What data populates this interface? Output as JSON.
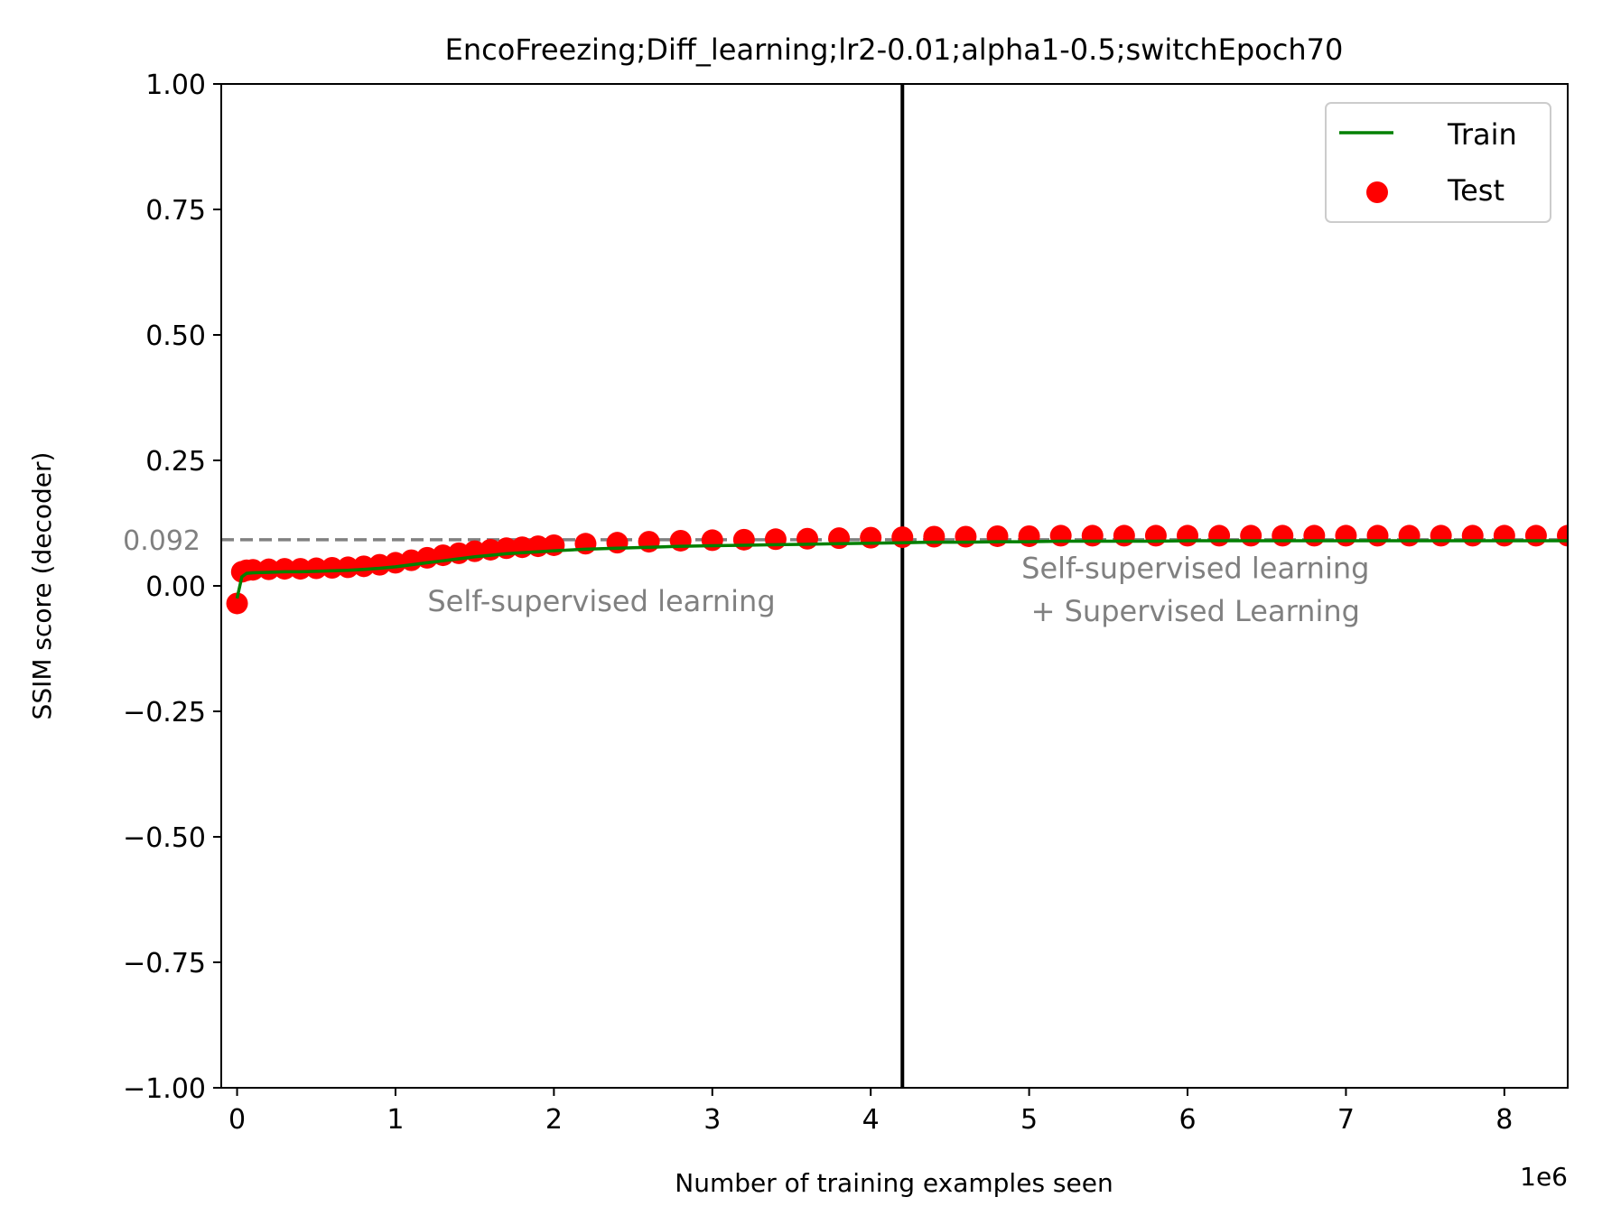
{
  "chart_data": {
    "type": "line",
    "title": "EncoFreezing;Diff_learning;lr2-0.01;alpha1-0.5;switchEpoch70",
    "xlabel": "Number of training examples seen",
    "ylabel": "SSIM score (decoder)",
    "x_offset_label": "1e6",
    "xlim": [
      -0.1,
      8.4
    ],
    "ylim": [
      -1.0,
      1.0
    ],
    "x_scale": 1000000,
    "xticks": [
      0,
      1,
      2,
      3,
      4,
      5,
      6,
      7,
      8
    ],
    "xtick_labels": [
      "0",
      "1",
      "2",
      "3",
      "4",
      "5",
      "6",
      "7",
      "8"
    ],
    "yticks": [
      1.0,
      0.75,
      0.5,
      0.25,
      0.0,
      -0.25,
      -0.5,
      -0.75,
      -1.0
    ],
    "ytick_labels": [
      "1.00",
      "0.75",
      "0.50",
      "0.25",
      "0.00",
      "−0.25",
      "−0.50",
      "−0.75",
      "−1.00"
    ],
    "grid": false,
    "legend": {
      "placement": "upper right",
      "entries": [
        "Train",
        "Test"
      ]
    },
    "reference_line": {
      "y": 0.092,
      "label": "0.092",
      "color": "#808080",
      "style": "dashed"
    },
    "switch_line": {
      "x": 4.2,
      "color": "#000000"
    },
    "annotations": [
      {
        "text": "Self-supervised learning",
        "x": 2.3,
        "y": -0.05
      },
      {
        "text": "Self-supervised learning",
        "x": 6.05,
        "y": 0.015
      },
      {
        "text": "+ Supervised Learning",
        "x": 6.05,
        "y": -0.07
      }
    ],
    "series": [
      {
        "name": "Train",
        "kind": "line",
        "color": "#008000",
        "points": [
          [
            0.0,
            -0.025
          ],
          [
            0.03,
            0.018
          ],
          [
            0.06,
            0.025
          ],
          [
            0.1,
            0.026
          ],
          [
            0.2,
            0.027
          ],
          [
            0.3,
            0.028
          ],
          [
            0.4,
            0.028
          ],
          [
            0.5,
            0.029
          ],
          [
            0.6,
            0.03
          ],
          [
            0.7,
            0.031
          ],
          [
            0.8,
            0.033
          ],
          [
            0.9,
            0.035
          ],
          [
            1.0,
            0.038
          ],
          [
            1.1,
            0.042
          ],
          [
            1.2,
            0.046
          ],
          [
            1.3,
            0.05
          ],
          [
            1.4,
            0.054
          ],
          [
            1.5,
            0.058
          ],
          [
            1.6,
            0.061
          ],
          [
            1.7,
            0.064
          ],
          [
            1.8,
            0.066
          ],
          [
            1.9,
            0.068
          ],
          [
            2.0,
            0.07
          ],
          [
            2.2,
            0.073
          ],
          [
            2.4,
            0.075
          ],
          [
            2.6,
            0.077
          ],
          [
            2.8,
            0.079
          ],
          [
            3.0,
            0.08
          ],
          [
            3.2,
            0.081
          ],
          [
            3.4,
            0.082
          ],
          [
            3.6,
            0.083
          ],
          [
            3.8,
            0.084
          ],
          [
            4.0,
            0.085
          ],
          [
            4.2,
            0.086
          ],
          [
            4.4,
            0.087
          ],
          [
            4.6,
            0.087
          ],
          [
            4.8,
            0.088
          ],
          [
            5.0,
            0.088
          ],
          [
            5.2,
            0.089
          ],
          [
            5.4,
            0.089
          ],
          [
            5.6,
            0.089
          ],
          [
            5.8,
            0.089
          ],
          [
            6.0,
            0.09
          ],
          [
            6.2,
            0.09
          ],
          [
            6.4,
            0.09
          ],
          [
            6.6,
            0.09
          ],
          [
            6.8,
            0.09
          ],
          [
            7.0,
            0.09
          ],
          [
            7.2,
            0.09
          ],
          [
            7.4,
            0.09
          ],
          [
            7.6,
            0.09
          ],
          [
            7.8,
            0.09
          ],
          [
            8.0,
            0.09
          ],
          [
            8.2,
            0.09
          ],
          [
            8.4,
            0.09
          ]
        ]
      },
      {
        "name": "Test",
        "kind": "scatter",
        "color": "#ff0000",
        "points": [
          [
            0.0,
            -0.035
          ],
          [
            0.03,
            0.028
          ],
          [
            0.06,
            0.031
          ],
          [
            0.1,
            0.032
          ],
          [
            0.2,
            0.033
          ],
          [
            0.3,
            0.034
          ],
          [
            0.4,
            0.034
          ],
          [
            0.5,
            0.035
          ],
          [
            0.6,
            0.036
          ],
          [
            0.7,
            0.037
          ],
          [
            0.8,
            0.039
          ],
          [
            0.9,
            0.042
          ],
          [
            1.0,
            0.046
          ],
          [
            1.1,
            0.051
          ],
          [
            1.2,
            0.056
          ],
          [
            1.3,
            0.061
          ],
          [
            1.4,
            0.065
          ],
          [
            1.5,
            0.069
          ],
          [
            1.6,
            0.072
          ],
          [
            1.7,
            0.075
          ],
          [
            1.8,
            0.077
          ],
          [
            1.9,
            0.079
          ],
          [
            2.0,
            0.081
          ],
          [
            2.2,
            0.084
          ],
          [
            2.4,
            0.086
          ],
          [
            2.6,
            0.088
          ],
          [
            2.8,
            0.09
          ],
          [
            3.0,
            0.091
          ],
          [
            3.2,
            0.092
          ],
          [
            3.4,
            0.093
          ],
          [
            3.6,
            0.094
          ],
          [
            3.8,
            0.095
          ],
          [
            4.0,
            0.096
          ],
          [
            4.2,
            0.097
          ],
          [
            4.4,
            0.098
          ],
          [
            4.6,
            0.098
          ],
          [
            4.8,
            0.099
          ],
          [
            5.0,
            0.099
          ],
          [
            5.2,
            0.1
          ],
          [
            5.4,
            0.1
          ],
          [
            5.6,
            0.1
          ],
          [
            5.8,
            0.1
          ],
          [
            6.0,
            0.1
          ],
          [
            6.2,
            0.1
          ],
          [
            6.4,
            0.1
          ],
          [
            6.6,
            0.1
          ],
          [
            6.8,
            0.1
          ],
          [
            7.0,
            0.1
          ],
          [
            7.2,
            0.1
          ],
          [
            7.4,
            0.1
          ],
          [
            7.6,
            0.1
          ],
          [
            7.8,
            0.1
          ],
          [
            8.0,
            0.1
          ],
          [
            8.2,
            0.1
          ],
          [
            8.4,
            0.1
          ]
        ]
      }
    ]
  }
}
